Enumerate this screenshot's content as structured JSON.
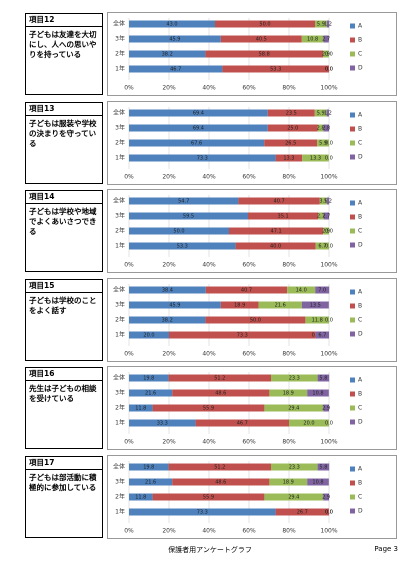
{
  "chart_data": [
    {
      "type": "bar",
      "orientation": "horizontal",
      "stacked": true,
      "title": "項目12",
      "subtitle": "子どもは友達を大切にし、人への思いやりを持っている",
      "categories": [
        "全体",
        "3年",
        "2年",
        "1年"
      ],
      "series": [
        {
          "name": "A",
          "color": "#4f81bd",
          "values": [
            43,
            45.9,
            38.2,
            46.7
          ],
          "value_labels": [
            "43.0",
            "45.9",
            "38.2",
            "46.7"
          ]
        },
        {
          "name": "B",
          "color": "#c0504d",
          "values": [
            50,
            40.5,
            58.8,
            53.3
          ],
          "value_labels": [
            "50.0",
            "40.5",
            "58.8",
            "53.3"
          ]
        },
        {
          "name": "C",
          "color": "#9bbb59",
          "values": [
            5.9,
            10.8,
            2.9,
            0
          ],
          "value_labels": [
            "5.9",
            "10.8",
            "2.9",
            "0.0"
          ]
        },
        {
          "name": "D",
          "color": "#8064a2",
          "values": [
            1.2,
            2.7,
            0,
            0
          ],
          "value_labels": [
            "1.2",
            "2.7",
            "0.0",
            "0.0"
          ]
        }
      ],
      "xlim": [
        0,
        100
      ],
      "xticks": [
        {
          "value": 0,
          "label": "0%"
        },
        {
          "value": 20,
          "label": "20%"
        },
        {
          "value": 40,
          "label": "40%"
        },
        {
          "value": 60,
          "label": "60%"
        },
        {
          "value": 80,
          "label": "80%"
        },
        {
          "value": 100,
          "label": "100%"
        }
      ],
      "grid": true,
      "legend": "right"
    },
    {
      "type": "bar",
      "orientation": "horizontal",
      "stacked": true,
      "title": "項目13",
      "subtitle": "子どもは服装や学校の決まりを守っている",
      "categories": [
        "全体",
        "3年",
        "2年",
        "1年"
      ],
      "series": [
        {
          "name": "A",
          "color": "#4f81bd",
          "values": [
            69.4,
            69.4,
            67.6,
            73.3
          ],
          "value_labels": [
            "69.4",
            "69.4",
            "67.6",
            "73.3"
          ]
        },
        {
          "name": "B",
          "color": "#c0504d",
          "values": [
            23.5,
            25,
            26.5,
            13.3
          ],
          "value_labels": [
            "23.5",
            "25.0",
            "26.5",
            "13.3"
          ]
        },
        {
          "name": "C",
          "color": "#9bbb59",
          "values": [
            5.9,
            2.8,
            5.9,
            13.3
          ],
          "value_labels": [
            "5.9",
            "2.8",
            "5.9",
            "13.3"
          ]
        },
        {
          "name": "D",
          "color": "#8064a2",
          "values": [
            1.2,
            2.8,
            0,
            0
          ],
          "value_labels": [
            "1.2",
            "2.8",
            "0.0",
            "0.0"
          ]
        }
      ],
      "xlim": [
        0,
        100
      ],
      "xticks": [
        {
          "value": 0,
          "label": "0%"
        },
        {
          "value": 20,
          "label": "20%"
        },
        {
          "value": 40,
          "label": "40%"
        },
        {
          "value": 60,
          "label": "60%"
        },
        {
          "value": 80,
          "label": "80%"
        },
        {
          "value": 100,
          "label": "100%"
        }
      ],
      "grid": true,
      "legend": "right"
    },
    {
      "type": "bar",
      "orientation": "horizontal",
      "stacked": true,
      "title": "項目14",
      "subtitle": "子どもは学校や地域でよくあいさつできる",
      "categories": [
        "全体",
        "3年",
        "2年",
        "1年"
      ],
      "series": [
        {
          "name": "A",
          "color": "#4f81bd",
          "values": [
            54.7,
            59.5,
            50,
            53.3
          ],
          "value_labels": [
            "54.7",
            "59.5",
            "50.0",
            "53.3"
          ]
        },
        {
          "name": "B",
          "color": "#c0504d",
          "values": [
            40.7,
            35.1,
            47.1,
            40
          ],
          "value_labels": [
            "40.7",
            "35.1",
            "47.1",
            "40.0"
          ]
        },
        {
          "name": "C",
          "color": "#9bbb59",
          "values": [
            3.5,
            2.7,
            2.9,
            6.7
          ],
          "value_labels": [
            "3.5",
            "2.7",
            "2.9",
            "6.7"
          ]
        },
        {
          "name": "D",
          "color": "#8064a2",
          "values": [
            1.2,
            2.7,
            0,
            0
          ],
          "value_labels": [
            "1.2",
            "2.7",
            "0.0",
            "0.0"
          ]
        }
      ],
      "xlim": [
        0,
        100
      ],
      "xticks": [
        {
          "value": 0,
          "label": "0%"
        },
        {
          "value": 20,
          "label": "20%"
        },
        {
          "value": 40,
          "label": "40%"
        },
        {
          "value": 60,
          "label": "60%"
        },
        {
          "value": 80,
          "label": "80%"
        },
        {
          "value": 100,
          "label": "100%"
        }
      ],
      "grid": true,
      "legend": "right"
    },
    {
      "type": "bar",
      "orientation": "horizontal",
      "stacked": true,
      "title": "項目15",
      "subtitle": "子どもは学校のことをよく話す",
      "categories": [
        "全体",
        "3年",
        "2年",
        "1年"
      ],
      "series": [
        {
          "name": "A",
          "color": "#4f81bd",
          "values": [
            38.4,
            45.9,
            38.2,
            20
          ],
          "value_labels": [
            "38.4",
            "45.9",
            "38.2",
            "20.0"
          ]
        },
        {
          "name": "B",
          "color": "#c0504d",
          "values": [
            40.7,
            18.9,
            50,
            73.3
          ],
          "value_labels": [
            "40.7",
            "18.9",
            "50.0",
            "73.3"
          ]
        },
        {
          "name": "C",
          "color": "#9bbb59",
          "values": [
            14,
            21.6,
            11.8,
            0
          ],
          "value_labels": [
            "14.0",
            "21.6",
            "11.8",
            "0.0"
          ]
        },
        {
          "name": "D",
          "color": "#8064a2",
          "values": [
            7,
            13.5,
            0,
            6.7
          ],
          "value_labels": [
            "7.0",
            "13.5",
            "0.0",
            "6.7"
          ]
        }
      ],
      "xlim": [
        0,
        100
      ],
      "xticks": [
        {
          "value": 0,
          "label": "0%"
        },
        {
          "value": 20,
          "label": "20%"
        },
        {
          "value": 40,
          "label": "40%"
        },
        {
          "value": 60,
          "label": "60%"
        },
        {
          "value": 80,
          "label": "80%"
        },
        {
          "value": 100,
          "label": "100%"
        }
      ],
      "grid": true,
      "legend": "right"
    },
    {
      "type": "bar",
      "orientation": "horizontal",
      "stacked": true,
      "title": "項目16",
      "subtitle": "先生は子どもの相談を受けている",
      "categories": [
        "全体",
        "3年",
        "2年",
        "1年"
      ],
      "series": [
        {
          "name": "A",
          "color": "#4f81bd",
          "values": [
            19.8,
            21.6,
            11.8,
            33.3
          ],
          "value_labels": [
            "19.8",
            "21.6",
            "11.8",
            "33.3"
          ]
        },
        {
          "name": "B",
          "color": "#c0504d",
          "values": [
            51.2,
            48.6,
            55.9,
            46.7
          ],
          "value_labels": [
            "51.2",
            "48.6",
            "55.9",
            "46.7"
          ]
        },
        {
          "name": "C",
          "color": "#9bbb59",
          "values": [
            23.3,
            18.9,
            29.4,
            20
          ],
          "value_labels": [
            "23.3",
            "18.9",
            "29.4",
            "20.0"
          ]
        },
        {
          "name": "D",
          "color": "#8064a2",
          "values": [
            5.8,
            10.8,
            2.9,
            0
          ],
          "value_labels": [
            "5.8",
            "10.8",
            "2.9",
            "0.0"
          ]
        }
      ],
      "xlim": [
        0,
        100
      ],
      "xticks": [
        {
          "value": 0,
          "label": "0%"
        },
        {
          "value": 20,
          "label": "20%"
        },
        {
          "value": 40,
          "label": "40%"
        },
        {
          "value": 60,
          "label": "60%"
        },
        {
          "value": 80,
          "label": "80%"
        },
        {
          "value": 100,
          "label": "100%"
        }
      ],
      "grid": true,
      "legend": "right"
    },
    {
      "type": "bar",
      "orientation": "horizontal",
      "stacked": true,
      "title": "項目17",
      "subtitle": "子どもは部活動に積極的に参加している",
      "categories": [
        "全体",
        "3年",
        "2年",
        "1年"
      ],
      "series": [
        {
          "name": "A",
          "color": "#4f81bd",
          "values": [
            19.8,
            21.6,
            11.8,
            73.3
          ],
          "value_labels": [
            "19.8",
            "21.6",
            "11.8",
            "73.3"
          ]
        },
        {
          "name": "B",
          "color": "#c0504d",
          "values": [
            51.2,
            48.6,
            55.9,
            26.7
          ],
          "value_labels": [
            "51.2",
            "48.6",
            "55.9",
            "26.7"
          ]
        },
        {
          "name": "C",
          "color": "#9bbb59",
          "values": [
            23.3,
            18.9,
            29.4,
            0
          ],
          "value_labels": [
            "23.3",
            "18.9",
            "29.4",
            "0.0"
          ]
        },
        {
          "name": "D",
          "color": "#8064a2",
          "values": [
            5.8,
            10.8,
            2.9,
            0
          ],
          "value_labels": [
            "5.8",
            "10.8",
            "2.9",
            "0.0"
          ]
        }
      ],
      "xlim": [
        0,
        100
      ],
      "xticks": [
        {
          "value": 0,
          "label": "0%"
        },
        {
          "value": 20,
          "label": "20%"
        },
        {
          "value": 40,
          "label": "40%"
        },
        {
          "value": 60,
          "label": "60%"
        },
        {
          "value": 80,
          "label": "80%"
        },
        {
          "value": 100,
          "label": "100%"
        }
      ],
      "grid": true,
      "legend": "right"
    }
  ],
  "footer": {
    "text": "保護者用アンケートグラフ",
    "page": "Page 3"
  }
}
